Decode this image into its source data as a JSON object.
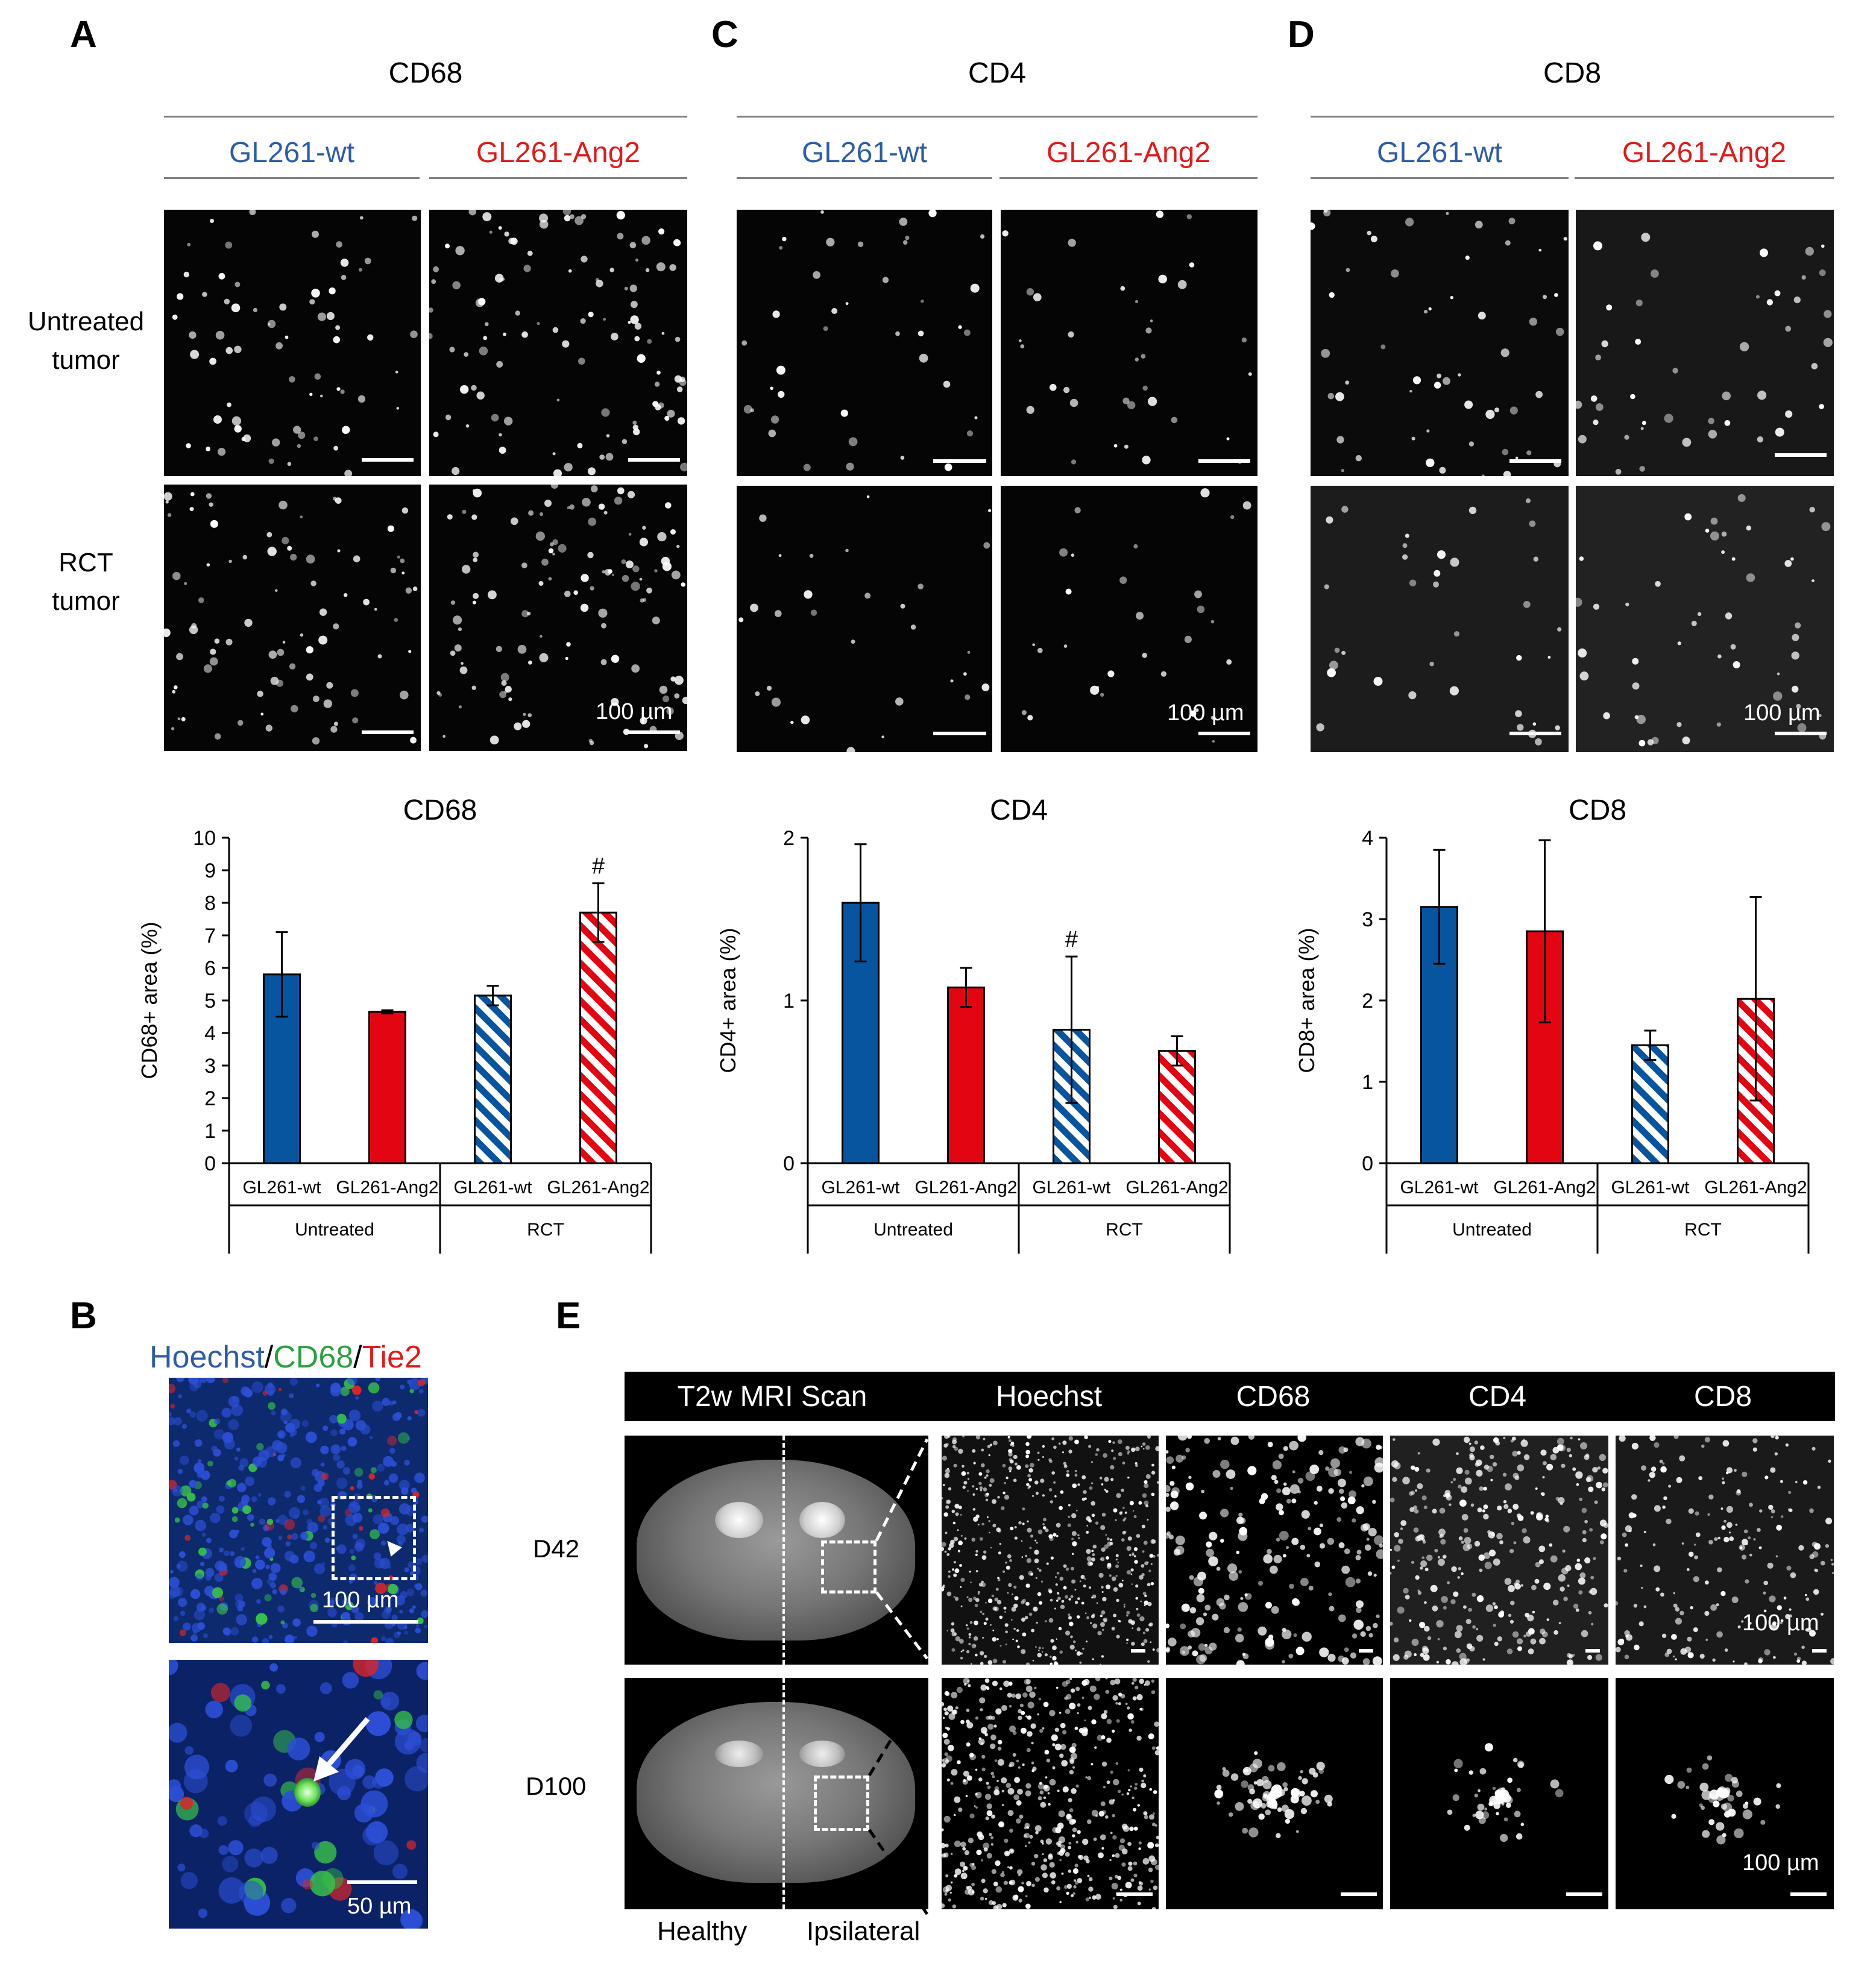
{
  "colors": {
    "wt_blue": "#08559f",
    "ang2_red": "#e40512",
    "label_blue": "#2e5da8",
    "label_red": "#e01b1b",
    "hoechst_blue": "#2e5da8",
    "cd68_green": "#2ea043",
    "tie2_red": "#e01b1b"
  },
  "panels": {
    "A": {
      "letter": "A",
      "marker": "CD68",
      "col1": "GL261-wt",
      "col2": "GL261-Ang2",
      "row1": "Untreated\ntumor",
      "row2": "RCT\ntumor",
      "scale_label": "100 µm"
    },
    "C": {
      "letter": "C",
      "marker": "CD4",
      "col1": "GL261-wt",
      "col2": "GL261-Ang2",
      "scale_label": "100 µm"
    },
    "D": {
      "letter": "D",
      "marker": "CD8",
      "col1": "GL261-wt",
      "col2": "GL261-Ang2",
      "scale_label": "100 µm"
    },
    "B": {
      "letter": "B",
      "stain_hoechst": "Hoechst",
      "sep1": "/",
      "stain_cd68": "CD68",
      "sep2": "/",
      "stain_tie2": "Tie2",
      "scale_top": "100 µm",
      "scale_bottom": "50 µm"
    },
    "E": {
      "letter": "E",
      "headers": [
        "T2w MRI Scan",
        "Hoechst",
        "CD68",
        "CD4",
        "CD8"
      ],
      "rows": [
        "D42",
        "D100"
      ],
      "scale_label_top": "100 µm",
      "scale_label_bottom": "100 µm",
      "bottom_left": "Healthy",
      "bottom_right": "Ipsilateral"
    }
  },
  "chart_data": [
    {
      "type": "bar",
      "title": "CD68",
      "ylabel": "CD68+ area (%)",
      "ylim": [
        0,
        10
      ],
      "yticks": [
        0,
        1,
        2,
        3,
        4,
        5,
        6,
        7,
        8,
        9,
        10
      ],
      "categories": [
        "GL261-wt",
        "GL261-Ang2",
        "GL261-wt",
        "GL261-Ang2"
      ],
      "groups": [
        "Untreated",
        "RCT"
      ],
      "values": [
        5.8,
        4.65,
        5.15,
        7.7
      ],
      "errors": [
        1.3,
        0.05,
        0.3,
        0.9
      ],
      "hatched": [
        false,
        false,
        true,
        true
      ],
      "annotations": [
        {
          "index": 3,
          "text": "#"
        }
      ]
    },
    {
      "type": "bar",
      "title": "CD4",
      "ylabel": "CD4+ area (%)",
      "ylim": [
        0,
        2
      ],
      "yticks": [
        0,
        1,
        2
      ],
      "categories": [
        "GL261-wt",
        "GL261-Ang2",
        "GL261-wt",
        "GL261-Ang2"
      ],
      "groups": [
        "Untreated",
        "RCT"
      ],
      "values": [
        1.6,
        1.08,
        0.82,
        0.69
      ],
      "errors": [
        0.36,
        0.12,
        0.45,
        0.09
      ],
      "hatched": [
        false,
        false,
        true,
        true
      ],
      "annotations": [
        {
          "index": 2,
          "text": "#"
        }
      ]
    },
    {
      "type": "bar",
      "title": "CD8",
      "ylabel": "CD8+ area (%)",
      "ylim": [
        0,
        4
      ],
      "yticks": [
        0,
        1,
        2,
        3,
        4
      ],
      "categories": [
        "GL261-wt",
        "GL261-Ang2",
        "GL261-wt",
        "GL261-Ang2"
      ],
      "groups": [
        "Untreated",
        "RCT"
      ],
      "values": [
        3.15,
        2.85,
        1.45,
        2.02
      ],
      "errors": [
        0.7,
        1.12,
        0.18,
        1.25
      ],
      "hatched": [
        false,
        false,
        true,
        true
      ],
      "annotations": []
    }
  ]
}
